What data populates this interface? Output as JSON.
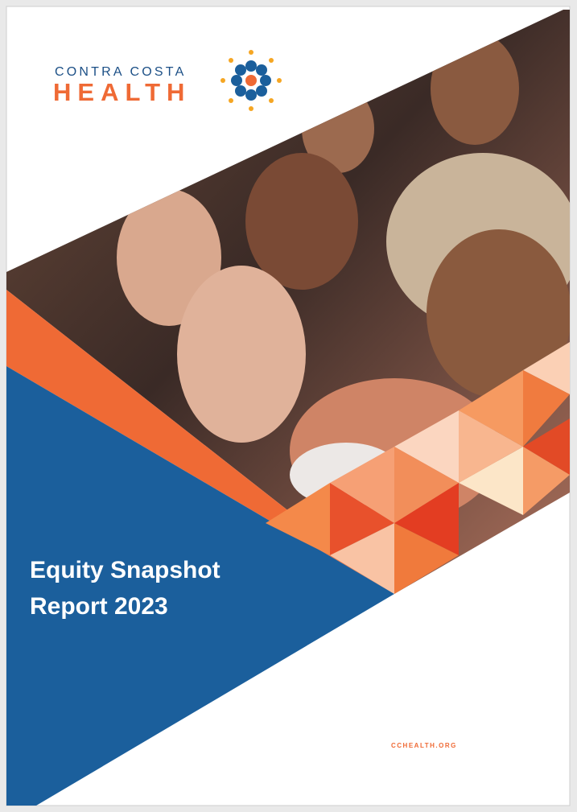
{
  "logo": {
    "line1": "CONTRA COSTA",
    "line2": "HEALTH"
  },
  "title": {
    "line1": "Equity Snapshot",
    "line2": "Report 2023"
  },
  "footer": {
    "url": "CCHEALTH.ORG"
  }
}
